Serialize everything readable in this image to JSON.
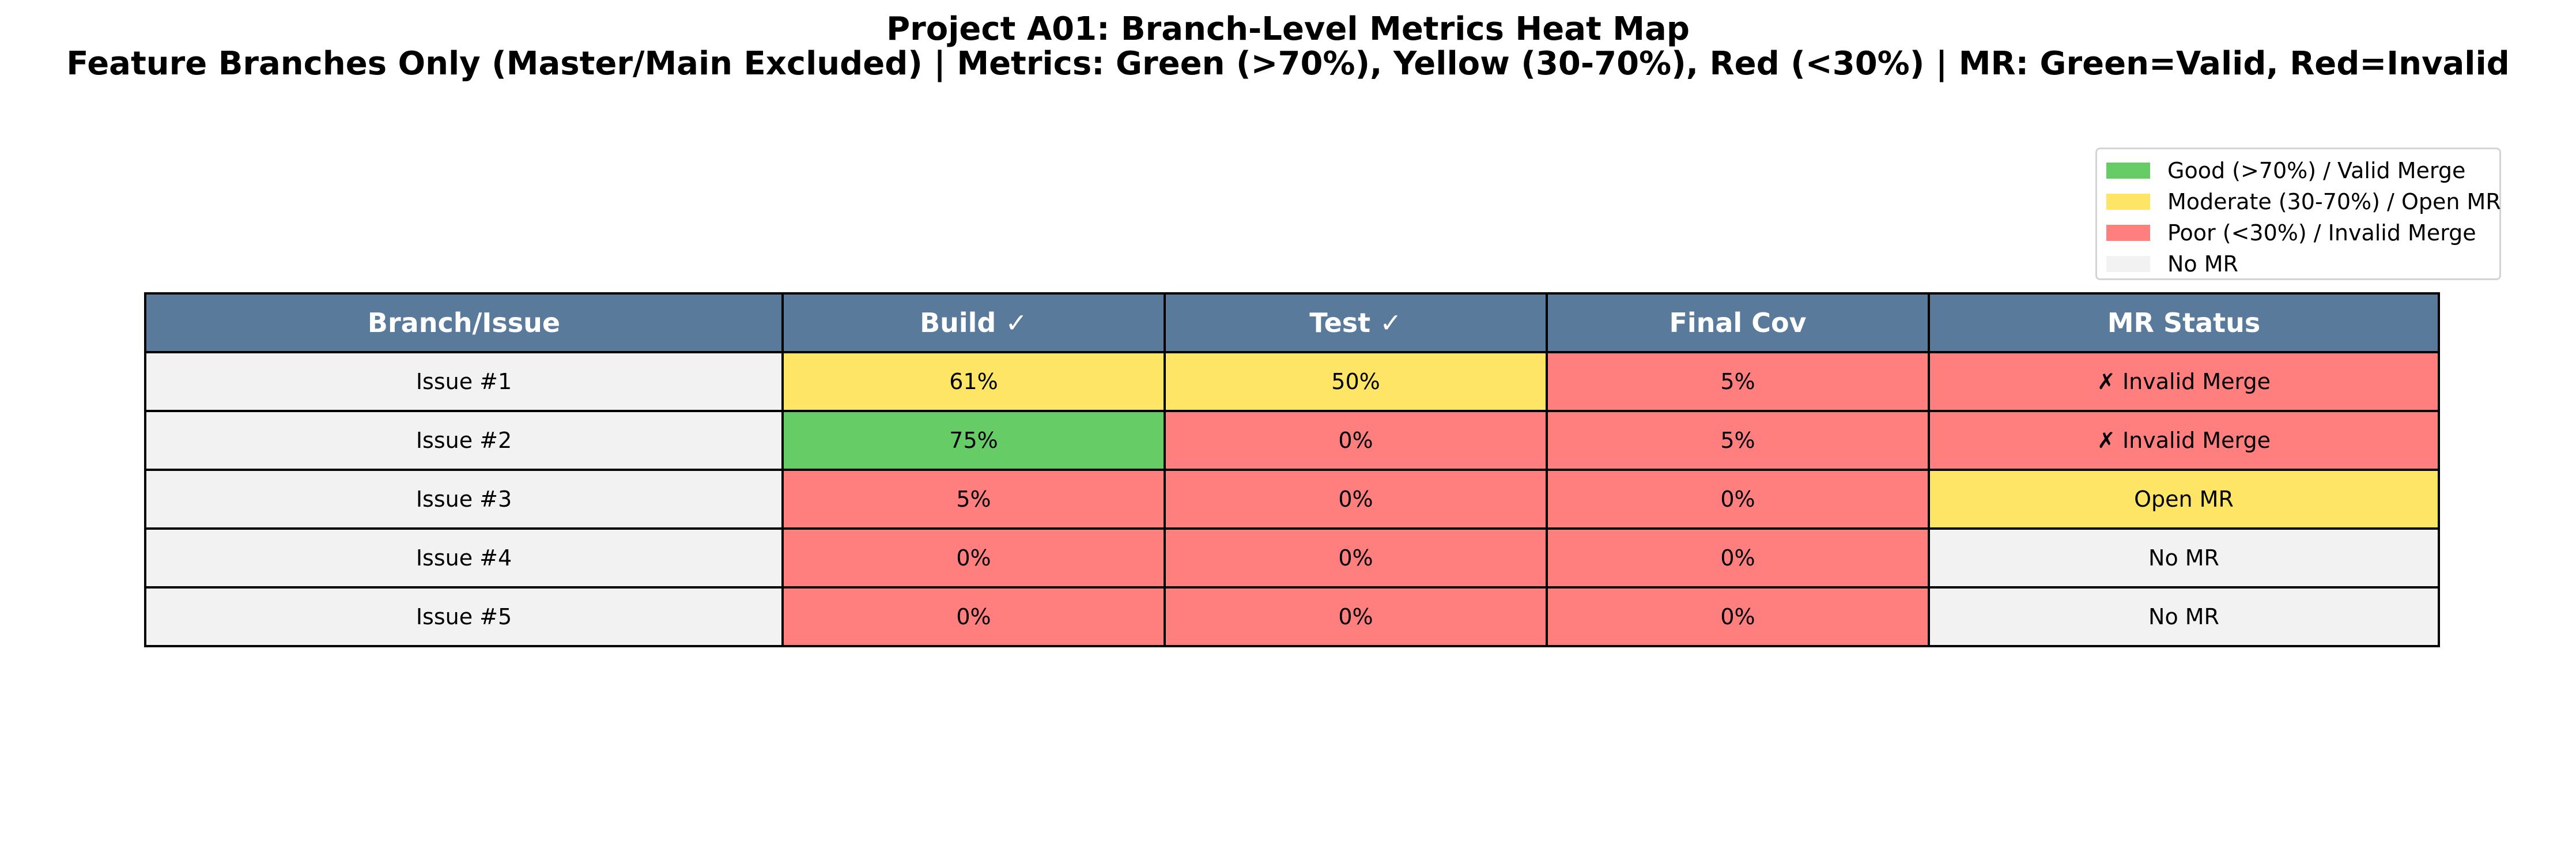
{
  "chart_data": {
    "type": "table",
    "title": "Project A01: Branch-Level Metrics Heat Map",
    "subtitle": "Feature Branches Only (Master/Main Excluded) | Metrics: Green (>70%), Yellow (30-70%), Red (<30%) | MR: Green=Valid, Red=Invalid",
    "columns": [
      "Branch/Issue",
      "Build ✓",
      "Test ✓",
      "Final Cov",
      "MR Status"
    ],
    "rows": [
      {
        "label": "Issue #1",
        "build": "61%",
        "test": "50%",
        "final_cov": "5%",
        "mr_status": "✗ Invalid Merge",
        "build_value": 61,
        "test_value": 50,
        "final_cov_value": 5,
        "mr_state": "invalid"
      },
      {
        "label": "Issue #2",
        "build": "75%",
        "test": "0%",
        "final_cov": "5%",
        "mr_status": "✗ Invalid Merge",
        "build_value": 75,
        "test_value": 0,
        "final_cov_value": 5,
        "mr_state": "invalid"
      },
      {
        "label": "Issue #3",
        "build": "5%",
        "test": "0%",
        "final_cov": "0%",
        "mr_status": "Open MR",
        "build_value": 5,
        "test_value": 0,
        "final_cov_value": 0,
        "mr_state": "open"
      },
      {
        "label": "Issue #4",
        "build": "0%",
        "test": "0%",
        "final_cov": "0%",
        "mr_status": "No MR",
        "build_value": 0,
        "test_value": 0,
        "final_cov_value": 0,
        "mr_state": "none"
      },
      {
        "label": "Issue #5",
        "build": "0%",
        "test": "0%",
        "final_cov": "0%",
        "mr_status": "No MR",
        "build_value": 0,
        "test_value": 0,
        "final_cov_value": 0,
        "mr_state": "none"
      }
    ],
    "legend": {
      "placement": "top-right",
      "entries": [
        {
          "label": "Good (>70%) / Valid Merge",
          "color": "#66cc66"
        },
        {
          "label": "Moderate (30-70%) / Open MR",
          "color": "#ffe566"
        },
        {
          "label": "Poor (<30%) / Invalid Merge",
          "color": "#ff7f7f"
        },
        {
          "label": "No MR",
          "color": "#f2f2f2"
        }
      ]
    },
    "colors": {
      "good": "#66cc66",
      "moderate": "#ffe566",
      "poor": "#ff7f7f",
      "neutral": "#f2f2f2",
      "header": "#5a7a9c",
      "header_text": "#ffffff"
    }
  }
}
